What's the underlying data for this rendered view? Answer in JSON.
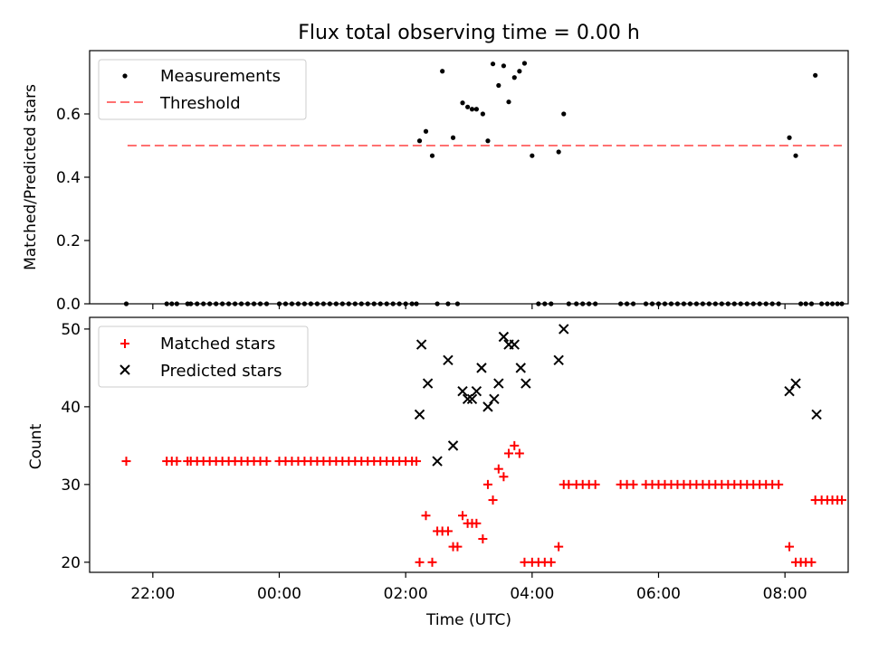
{
  "chart_data": [
    {
      "type": "scatter",
      "title": "Flux total observing time = 0.00 h",
      "ylabel": "Matched/Predicted stars",
      "xlabel": "",
      "xlim": [
        21.0,
        33.0
      ],
      "ylim": [
        0.0,
        0.8
      ],
      "yticks": [
        0.0,
        0.2,
        0.4,
        0.6
      ],
      "ytick_labels": [
        "0.0",
        "0.2",
        "0.4",
        "0.6"
      ],
      "legend": "top-left",
      "threshold": {
        "name": "Threshold",
        "y": 0.5,
        "x_range": [
          21.6,
          32.9
        ],
        "color": "#ff7070",
        "style": "dashed"
      },
      "series": [
        {
          "name": "Measurements",
          "marker": "dot",
          "color": "#000000",
          "x": [
            21.58,
            22.22,
            22.3,
            22.38,
            22.55,
            22.6,
            22.7,
            22.8,
            22.9,
            23.0,
            23.1,
            23.2,
            23.3,
            23.4,
            23.5,
            23.6,
            23.7,
            23.8,
            24.0,
            24.1,
            24.2,
            24.3,
            24.4,
            24.5,
            24.6,
            24.7,
            24.8,
            24.9,
            25.0,
            25.1,
            25.2,
            25.3,
            25.4,
            25.5,
            25.6,
            25.7,
            25.8,
            25.9,
            26.0,
            26.1,
            26.17,
            26.22,
            26.32,
            26.42,
            26.5,
            26.58,
            26.67,
            26.75,
            26.82,
            26.9,
            26.98,
            27.05,
            27.12,
            27.22,
            27.3,
            27.38,
            27.47,
            27.55,
            27.63,
            27.72,
            27.8,
            27.88,
            28.0,
            28.1,
            28.2,
            28.3,
            28.42,
            28.5,
            28.58,
            28.7,
            28.8,
            28.9,
            29.0,
            29.4,
            29.5,
            29.6,
            29.8,
            29.9,
            30.0,
            30.1,
            30.2,
            30.3,
            30.4,
            30.5,
            30.6,
            30.7,
            30.8,
            30.9,
            31.0,
            31.1,
            31.2,
            31.3,
            31.4,
            31.5,
            31.6,
            31.7,
            31.8,
            31.9,
            32.07,
            32.17,
            32.25,
            32.33,
            32.42,
            32.48,
            32.58,
            32.67,
            32.75,
            32.83,
            32.9
          ],
          "y": [
            0.0,
            0.0,
            0.0,
            0.0,
            0.0,
            0.0,
            0.0,
            0.0,
            0.0,
            0.0,
            0.0,
            0.0,
            0.0,
            0.0,
            0.0,
            0.0,
            0.0,
            0.0,
            0.0,
            0.0,
            0.0,
            0.0,
            0.0,
            0.0,
            0.0,
            0.0,
            0.0,
            0.0,
            0.0,
            0.0,
            0.0,
            0.0,
            0.0,
            0.0,
            0.0,
            0.0,
            0.0,
            0.0,
            0.0,
            0.0,
            0.0,
            0.515,
            0.545,
            0.468,
            0.0,
            0.735,
            0.0,
            0.525,
            0.0,
            0.635,
            0.622,
            0.615,
            0.615,
            0.6,
            0.515,
            0.758,
            0.69,
            0.752,
            0.638,
            0.715,
            0.735,
            0.76,
            0.468,
            0.0,
            0.0,
            0.0,
            0.48,
            0.6,
            0.0,
            0.0,
            0.0,
            0.0,
            0.0,
            0.0,
            0.0,
            0.0,
            0.0,
            0.0,
            0.0,
            0.0,
            0.0,
            0.0,
            0.0,
            0.0,
            0.0,
            0.0,
            0.0,
            0.0,
            0.0,
            0.0,
            0.0,
            0.0,
            0.0,
            0.0,
            0.0,
            0.0,
            0.0,
            0.0,
            0.525,
            0.468,
            0.0,
            0.0,
            0.0,
            0.722,
            0.0,
            0.0,
            0.0,
            0.0,
            0.0
          ]
        }
      ]
    },
    {
      "type": "scatter",
      "title": "",
      "ylabel": "Count",
      "xlabel": "Time (UTC)",
      "xlim": [
        21.0,
        33.0
      ],
      "ylim": [
        18.7,
        51.5
      ],
      "yticks": [
        20,
        30,
        40,
        50
      ],
      "ytick_labels": [
        "20",
        "30",
        "40",
        "50"
      ],
      "xticks": [
        22,
        24,
        26,
        28,
        30,
        32
      ],
      "xtick_labels": [
        "22:00",
        "00:00",
        "02:00",
        "04:00",
        "06:00",
        "08:00"
      ],
      "legend": "top-left",
      "series": [
        {
          "name": "Matched stars",
          "marker": "plus",
          "color": "#ff0000",
          "x": [
            21.58,
            22.22,
            22.3,
            22.38,
            22.55,
            22.6,
            22.7,
            22.8,
            22.9,
            23.0,
            23.1,
            23.2,
            23.3,
            23.4,
            23.5,
            23.6,
            23.7,
            23.8,
            24.0,
            24.1,
            24.2,
            24.3,
            24.4,
            24.5,
            24.6,
            24.7,
            24.8,
            24.9,
            25.0,
            25.1,
            25.2,
            25.3,
            25.4,
            25.5,
            25.6,
            25.7,
            25.8,
            25.9,
            26.0,
            26.1,
            26.17,
            26.22,
            26.32,
            26.42,
            26.5,
            26.58,
            26.67,
            26.75,
            26.82,
            26.9,
            26.98,
            27.05,
            27.12,
            27.22,
            27.3,
            27.38,
            27.47,
            27.55,
            27.63,
            27.72,
            27.8,
            27.88,
            28.0,
            28.1,
            28.2,
            28.3,
            28.42,
            28.5,
            28.58,
            28.7,
            28.8,
            28.9,
            29.0,
            29.4,
            29.5,
            29.6,
            29.8,
            29.9,
            30.0,
            30.1,
            30.2,
            30.3,
            30.4,
            30.5,
            30.6,
            30.7,
            30.8,
            30.9,
            31.0,
            31.1,
            31.2,
            31.3,
            31.4,
            31.5,
            31.6,
            31.7,
            31.8,
            31.9,
            32.07,
            32.17,
            32.25,
            32.33,
            32.42,
            32.48,
            32.58,
            32.67,
            32.75,
            32.83,
            32.9
          ],
          "y": [
            33,
            33,
            33,
            33,
            33,
            33,
            33,
            33,
            33,
            33,
            33,
            33,
            33,
            33,
            33,
            33,
            33,
            33,
            33,
            33,
            33,
            33,
            33,
            33,
            33,
            33,
            33,
            33,
            33,
            33,
            33,
            33,
            33,
            33,
            33,
            33,
            33,
            33,
            33,
            33,
            33,
            20,
            26,
            20,
            24,
            24,
            24,
            22,
            22,
            26,
            25,
            25,
            25,
            23,
            30,
            28,
            32,
            31,
            34,
            35,
            34,
            20,
            20,
            20,
            20,
            20,
            22,
            30,
            30,
            30,
            30,
            30,
            30,
            30,
            30,
            30,
            30,
            30,
            30,
            30,
            30,
            30,
            30,
            30,
            30,
            30,
            30,
            30,
            30,
            30,
            30,
            30,
            30,
            30,
            30,
            30,
            30,
            30,
            22,
            20,
            20,
            20,
            20,
            28,
            28,
            28,
            28,
            28,
            28
          ]
        },
        {
          "name": "Predicted stars",
          "marker": "x",
          "color": "#000000",
          "x": [
            26.22,
            26.25,
            26.35,
            26.5,
            26.67,
            26.75,
            26.9,
            26.98,
            27.05,
            27.12,
            27.2,
            27.3,
            27.4,
            27.47,
            27.55,
            27.63,
            27.72,
            27.82,
            27.9,
            28.42,
            28.5,
            32.07,
            32.17,
            32.5
          ],
          "y": [
            39,
            48,
            43,
            33,
            46,
            35,
            42,
            41,
            41,
            42,
            45,
            40,
            41,
            43,
            49,
            48,
            48,
            45,
            43,
            46,
            50,
            42,
            43,
            39
          ]
        }
      ]
    }
  ]
}
